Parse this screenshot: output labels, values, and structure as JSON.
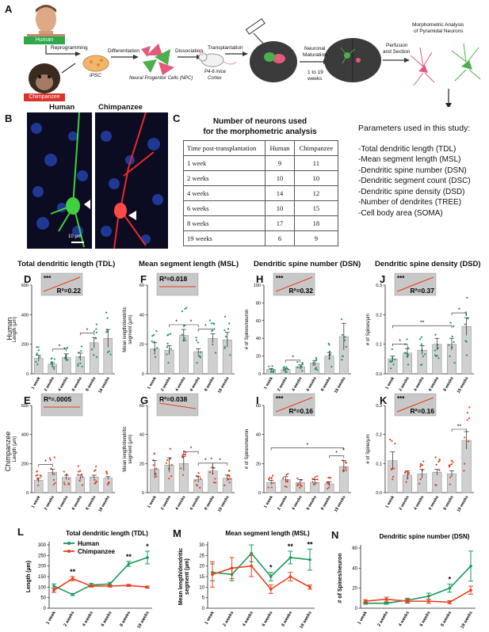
{
  "panel_letters": {
    "A": "A",
    "B": "B",
    "C": "C",
    "D": "D",
    "E": "E",
    "F": "F",
    "G": "G",
    "H": "H",
    "I": "I",
    "J": "J",
    "K": "K",
    "L": "L",
    "M": "M",
    "N": "N"
  },
  "panel_a": {
    "human": "Human",
    "chimpanzee": "Chimpanzee",
    "reprogramming": "Reprogramming",
    "ipsc": "iPSC",
    "differentiation": "Differentiation",
    "npc": "Neural Progenitor Cells (NPC)",
    "dissociation": "Dissociation",
    "transplantation": "Transplantation",
    "mice": "P4-6 mice",
    "cortex": "Cortex",
    "neuronal": "Neuronal",
    "maturation": "Maturation",
    "weeks_range": "1 to 19",
    "weeks_word": "weeks",
    "perfusion": "Perfusion",
    "and_section": "and Section",
    "morpho1": "Morphometric Analysis",
    "morpho2": "of Pyramidal Neurons"
  },
  "panel_b": {
    "human": "Human",
    "chimpanzee": "Chimpanzee",
    "scale": "10 µm"
  },
  "panel_c": {
    "title1": "Number of neurons used",
    "title2": "for the morphometric analysis",
    "header": [
      "Time post-transplantation",
      "Human",
      "Chimpanzee"
    ],
    "rows": [
      [
        "1 week",
        "9",
        "11"
      ],
      [
        "2 weeks",
        "10",
        "10"
      ],
      [
        "4 weeks",
        "14",
        "12"
      ],
      [
        "6 weeks",
        "10",
        "15"
      ],
      [
        "8 weeks",
        "17",
        "18"
      ],
      [
        "19 weeks",
        "6",
        "9"
      ]
    ]
  },
  "params": {
    "title": "Parameters used in this study:",
    "items": [
      "-Total dendritic length (TDL)",
      "-Mean segment length (MSL)",
      "-Dendritic spine number (DSN)",
      "-Dendritic segment count (DSC)",
      "-Dendritic spine density (DSD)",
      "-Number of dendrites (TREE)",
      "-Cell body area (SOMA)"
    ]
  },
  "column_headers": [
    "Total dendritic length (TDL)",
    "Mean segment length (MSL)",
    "Dendritic spine number (DSN)",
    "Dendritic spine density (DSD)"
  ],
  "row_labels": {
    "human": "Human",
    "chimp": "Chimpanzee"
  },
  "colors": {
    "human": "#1a9a5c",
    "chimp": "#e8401c",
    "bar": "#d0d0d0",
    "inset": "#c8c8c8"
  },
  "chart_data": [
    {
      "panel": "D",
      "type": "bar",
      "species": "Human",
      "ylabel": "Length (µm)",
      "ylim": [
        0,
        600
      ],
      "yticks": [
        0,
        200,
        400,
        600
      ],
      "categories": [
        "1 week",
        "2 weeks",
        "4 weeks",
        "6 weeks",
        "8 weeks",
        "19 weeks"
      ],
      "values": [
        105,
        65,
        110,
        115,
        210,
        240
      ],
      "errors": [
        20,
        10,
        25,
        25,
        35,
        60
      ],
      "inset": {
        "stars": "***",
        "r2": "R²=0.22",
        "trend": "up"
      },
      "sig": [
        {
          "from": 1,
          "to": 2,
          "label": "*"
        },
        {
          "from": 3,
          "to": 4,
          "label": "*"
        }
      ]
    },
    {
      "panel": "F",
      "type": "bar",
      "species": "Human",
      "ylabel": "Mean length/dendritic segment (µm)",
      "ylim": [
        0,
        60
      ],
      "yticks": [
        0,
        20,
        40,
        60
      ],
      "categories": [
        "1 week",
        "2 weeks",
        "4 weeks",
        "6 weeks",
        "8 weeks",
        "19 weeks"
      ],
      "values": [
        17,
        16,
        26,
        15,
        24,
        23
      ],
      "errors": [
        4,
        3,
        4,
        2,
        3,
        5
      ],
      "inset": {
        "stars": "",
        "r2": "R²=0.018",
        "trend": "flat"
      },
      "sig": [
        {
          "from": 1,
          "to": 2,
          "label": "*"
        },
        {
          "from": 2,
          "to": 3,
          "label": "*"
        },
        {
          "from": 3,
          "to": 4,
          "label": "*"
        }
      ]
    },
    {
      "panel": "H",
      "type": "bar",
      "species": "Human",
      "ylabel": "# of Spines/neuron",
      "ylim": [
        0,
        100
      ],
      "yticks": [
        0,
        20,
        40,
        60,
        80,
        100
      ],
      "categories": [
        "1 week",
        "2 weeks",
        "4 weeks",
        "6 weeks",
        "8 weeks",
        "19 weeks"
      ],
      "values": [
        5,
        5,
        8,
        12,
        20,
        42
      ],
      "errors": [
        1,
        1,
        2,
        3,
        4,
        15
      ],
      "inset": {
        "stars": "***",
        "r2": "R²=0.32",
        "trend": "up"
      },
      "sig": [
        {
          "from": 1,
          "to": 2,
          "label": "*"
        }
      ]
    },
    {
      "panel": "J",
      "type": "bar",
      "species": "Human",
      "ylabel": "# of Spines/µm",
      "ylim": [
        0,
        0.3
      ],
      "yticks": [
        0.0,
        0.1,
        0.2,
        0.3
      ],
      "categories": [
        "1 week",
        "2 weeks",
        "4 weeks",
        "6 weeks",
        "8 weeks",
        "19 weeks"
      ],
      "values": [
        0.05,
        0.07,
        0.08,
        0.1,
        0.1,
        0.16
      ],
      "errors": [
        0.01,
        0.015,
        0.015,
        0.02,
        0.02,
        0.03
      ],
      "inset": {
        "stars": "***",
        "r2": "R²=0.37",
        "trend": "up"
      },
      "sig": [
        {
          "from": 0,
          "to": 1,
          "label": "*"
        },
        {
          "from": 0,
          "to": 4,
          "label": "**"
        },
        {
          "from": 4,
          "to": 5,
          "label": "*"
        }
      ]
    },
    {
      "panel": "E",
      "type": "bar",
      "species": "Chimpanzee",
      "ylabel": "Length (µm)",
      "ylim": [
        0,
        600
      ],
      "yticks": [
        0,
        200,
        400,
        600
      ],
      "categories": [
        "1 week",
        "2 weeks",
        "4 weeks",
        "6 weeks",
        "8 weeks",
        "19 weeks"
      ],
      "values": [
        85,
        140,
        105,
        105,
        108,
        100
      ],
      "errors": [
        15,
        20,
        15,
        15,
        12,
        10
      ],
      "inset": {
        "stars": "",
        "r2": "R²=.0005",
        "trend": "flat"
      },
      "sig": [
        {
          "from": 0,
          "to": 1,
          "label": "*"
        }
      ]
    },
    {
      "panel": "G",
      "type": "bar",
      "species": "Chimpanzee",
      "ylabel": "Mean length/dendritic segment (µm)",
      "ylim": [
        0,
        60
      ],
      "yticks": [
        0,
        20,
        40,
        60
      ],
      "categories": [
        "1 week",
        "2 weeks",
        "4 weeks",
        "6 weeks",
        "8 weeks",
        "19 weeks"
      ],
      "values": [
        16,
        19,
        20,
        9,
        15,
        10
      ],
      "errors": [
        6,
        5,
        5,
        2,
        2,
        2
      ],
      "inset": {
        "stars": "",
        "r2": "R²=0.038",
        "trend": "down"
      },
      "sig": [
        {
          "from": 2,
          "to": 3,
          "label": "*"
        },
        {
          "from": 3,
          "to": 4,
          "label": "*"
        },
        {
          "from": 4,
          "to": 5,
          "label": "*"
        }
      ]
    },
    {
      "panel": "I",
      "type": "bar",
      "species": "Chimpanzee",
      "ylabel": "# of Spines/neuron",
      "ylim": [
        0,
        60
      ],
      "yticks": [
        0,
        20,
        40,
        60
      ],
      "categories": [
        "1 week",
        "2 weeks",
        "4 weeks",
        "6 weeks",
        "8 weeks",
        "19 weeks"
      ],
      "values": [
        7,
        9,
        7,
        7,
        6,
        18
      ],
      "errors": [
        1.5,
        2,
        2,
        2,
        1.5,
        4
      ],
      "inset": {
        "stars": "***",
        "r2": "R²=0.16",
        "trend": "up"
      },
      "sig": [
        {
          "from": 0,
          "to": 5,
          "label": "*"
        },
        {
          "from": 4,
          "to": 5,
          "label": "*"
        }
      ]
    },
    {
      "panel": "K",
      "type": "bar",
      "species": "Chimpanzee",
      "ylabel": "# of Spine/µm",
      "ylim": [
        0,
        0.3
      ],
      "yticks": [
        0.0,
        0.1,
        0.2,
        0.3
      ],
      "categories": [
        "1 week",
        "2 weeks",
        "4 weeks",
        "6 weeks",
        "8 weeks",
        "19 weeks"
      ],
      "values": [
        0.11,
        0.06,
        0.065,
        0.07,
        0.065,
        0.18
      ],
      "errors": [
        0.03,
        0.015,
        0.015,
        0.01,
        0.01,
        0.03
      ],
      "inset": {
        "stars": "***",
        "r2": "R²=0.16",
        "trend": "up"
      },
      "sig": [
        {
          "from": 4,
          "to": 5,
          "label": "**"
        }
      ]
    },
    {
      "panel": "L",
      "type": "line",
      "title": "Total dendritic length (TDL)",
      "ylabel": "Length (µm)",
      "ylim": [
        0,
        300
      ],
      "yticks": [
        0,
        50,
        100,
        150,
        200,
        250,
        300
      ],
      "categories": [
        "1 week",
        "2 weeks",
        "4 weeks",
        "6 weeks",
        "8 weeks",
        "19 weeks"
      ],
      "legend": [
        "Human",
        "Chimpanzee"
      ],
      "series": [
        {
          "name": "Human",
          "values": [
            105,
            65,
            110,
            115,
            210,
            240
          ],
          "errors": [
            10,
            5,
            8,
            8,
            12,
            30
          ]
        },
        {
          "name": "Chimpanzee",
          "values": [
            85,
            140,
            105,
            105,
            108,
            100
          ],
          "errors": [
            10,
            10,
            5,
            5,
            5,
            5
          ]
        }
      ],
      "sig": [
        "",
        "**",
        "",
        "",
        "**",
        "*"
      ]
    },
    {
      "panel": "M",
      "type": "line",
      "title": "Mean segment length (MSL)",
      "ylabel": "Mean length/dendritic segment (µm)",
      "ylim": [
        0,
        30
      ],
      "yticks": [
        0,
        5,
        10,
        15,
        20,
        25,
        30
      ],
      "categories": [
        "1 week",
        "2 weeks",
        "4 weeks",
        "6 weeks",
        "8 weeks",
        "19 weeks"
      ],
      "series": [
        {
          "name": "Human",
          "values": [
            17,
            16,
            26,
            15,
            24,
            23
          ],
          "errors": [
            4,
            3,
            4,
            2,
            3,
            5
          ]
        },
        {
          "name": "Chimpanzee",
          "values": [
            16,
            19,
            20,
            9,
            15,
            10
          ],
          "errors": [
            6,
            5,
            5,
            2,
            2,
            1
          ]
        }
      ],
      "sig": [
        "",
        "",
        "",
        "*",
        "**",
        "**"
      ]
    },
    {
      "panel": "N",
      "type": "line",
      "title": "Dendritic spine number (DSN)",
      "ylabel": "# of Spines/neuron",
      "ylim": [
        0,
        60
      ],
      "yticks": [
        0,
        20,
        40,
        60
      ],
      "categories": [
        "1 week",
        "2 weeks",
        "4 weeks",
        "6 weeks",
        "8 weeks",
        "19 weeks"
      ],
      "series": [
        {
          "name": "Human",
          "values": [
            5,
            5,
            8,
            12,
            20,
            42
          ],
          "errors": [
            1,
            1,
            2,
            3,
            4,
            15
          ]
        },
        {
          "name": "Chimpanzee",
          "values": [
            7,
            9,
            7,
            7,
            6,
            18
          ],
          "errors": [
            1.5,
            2,
            2,
            2,
            1.5,
            4
          ]
        }
      ],
      "sig": [
        "",
        "",
        "",
        "",
        "*",
        ""
      ]
    }
  ]
}
